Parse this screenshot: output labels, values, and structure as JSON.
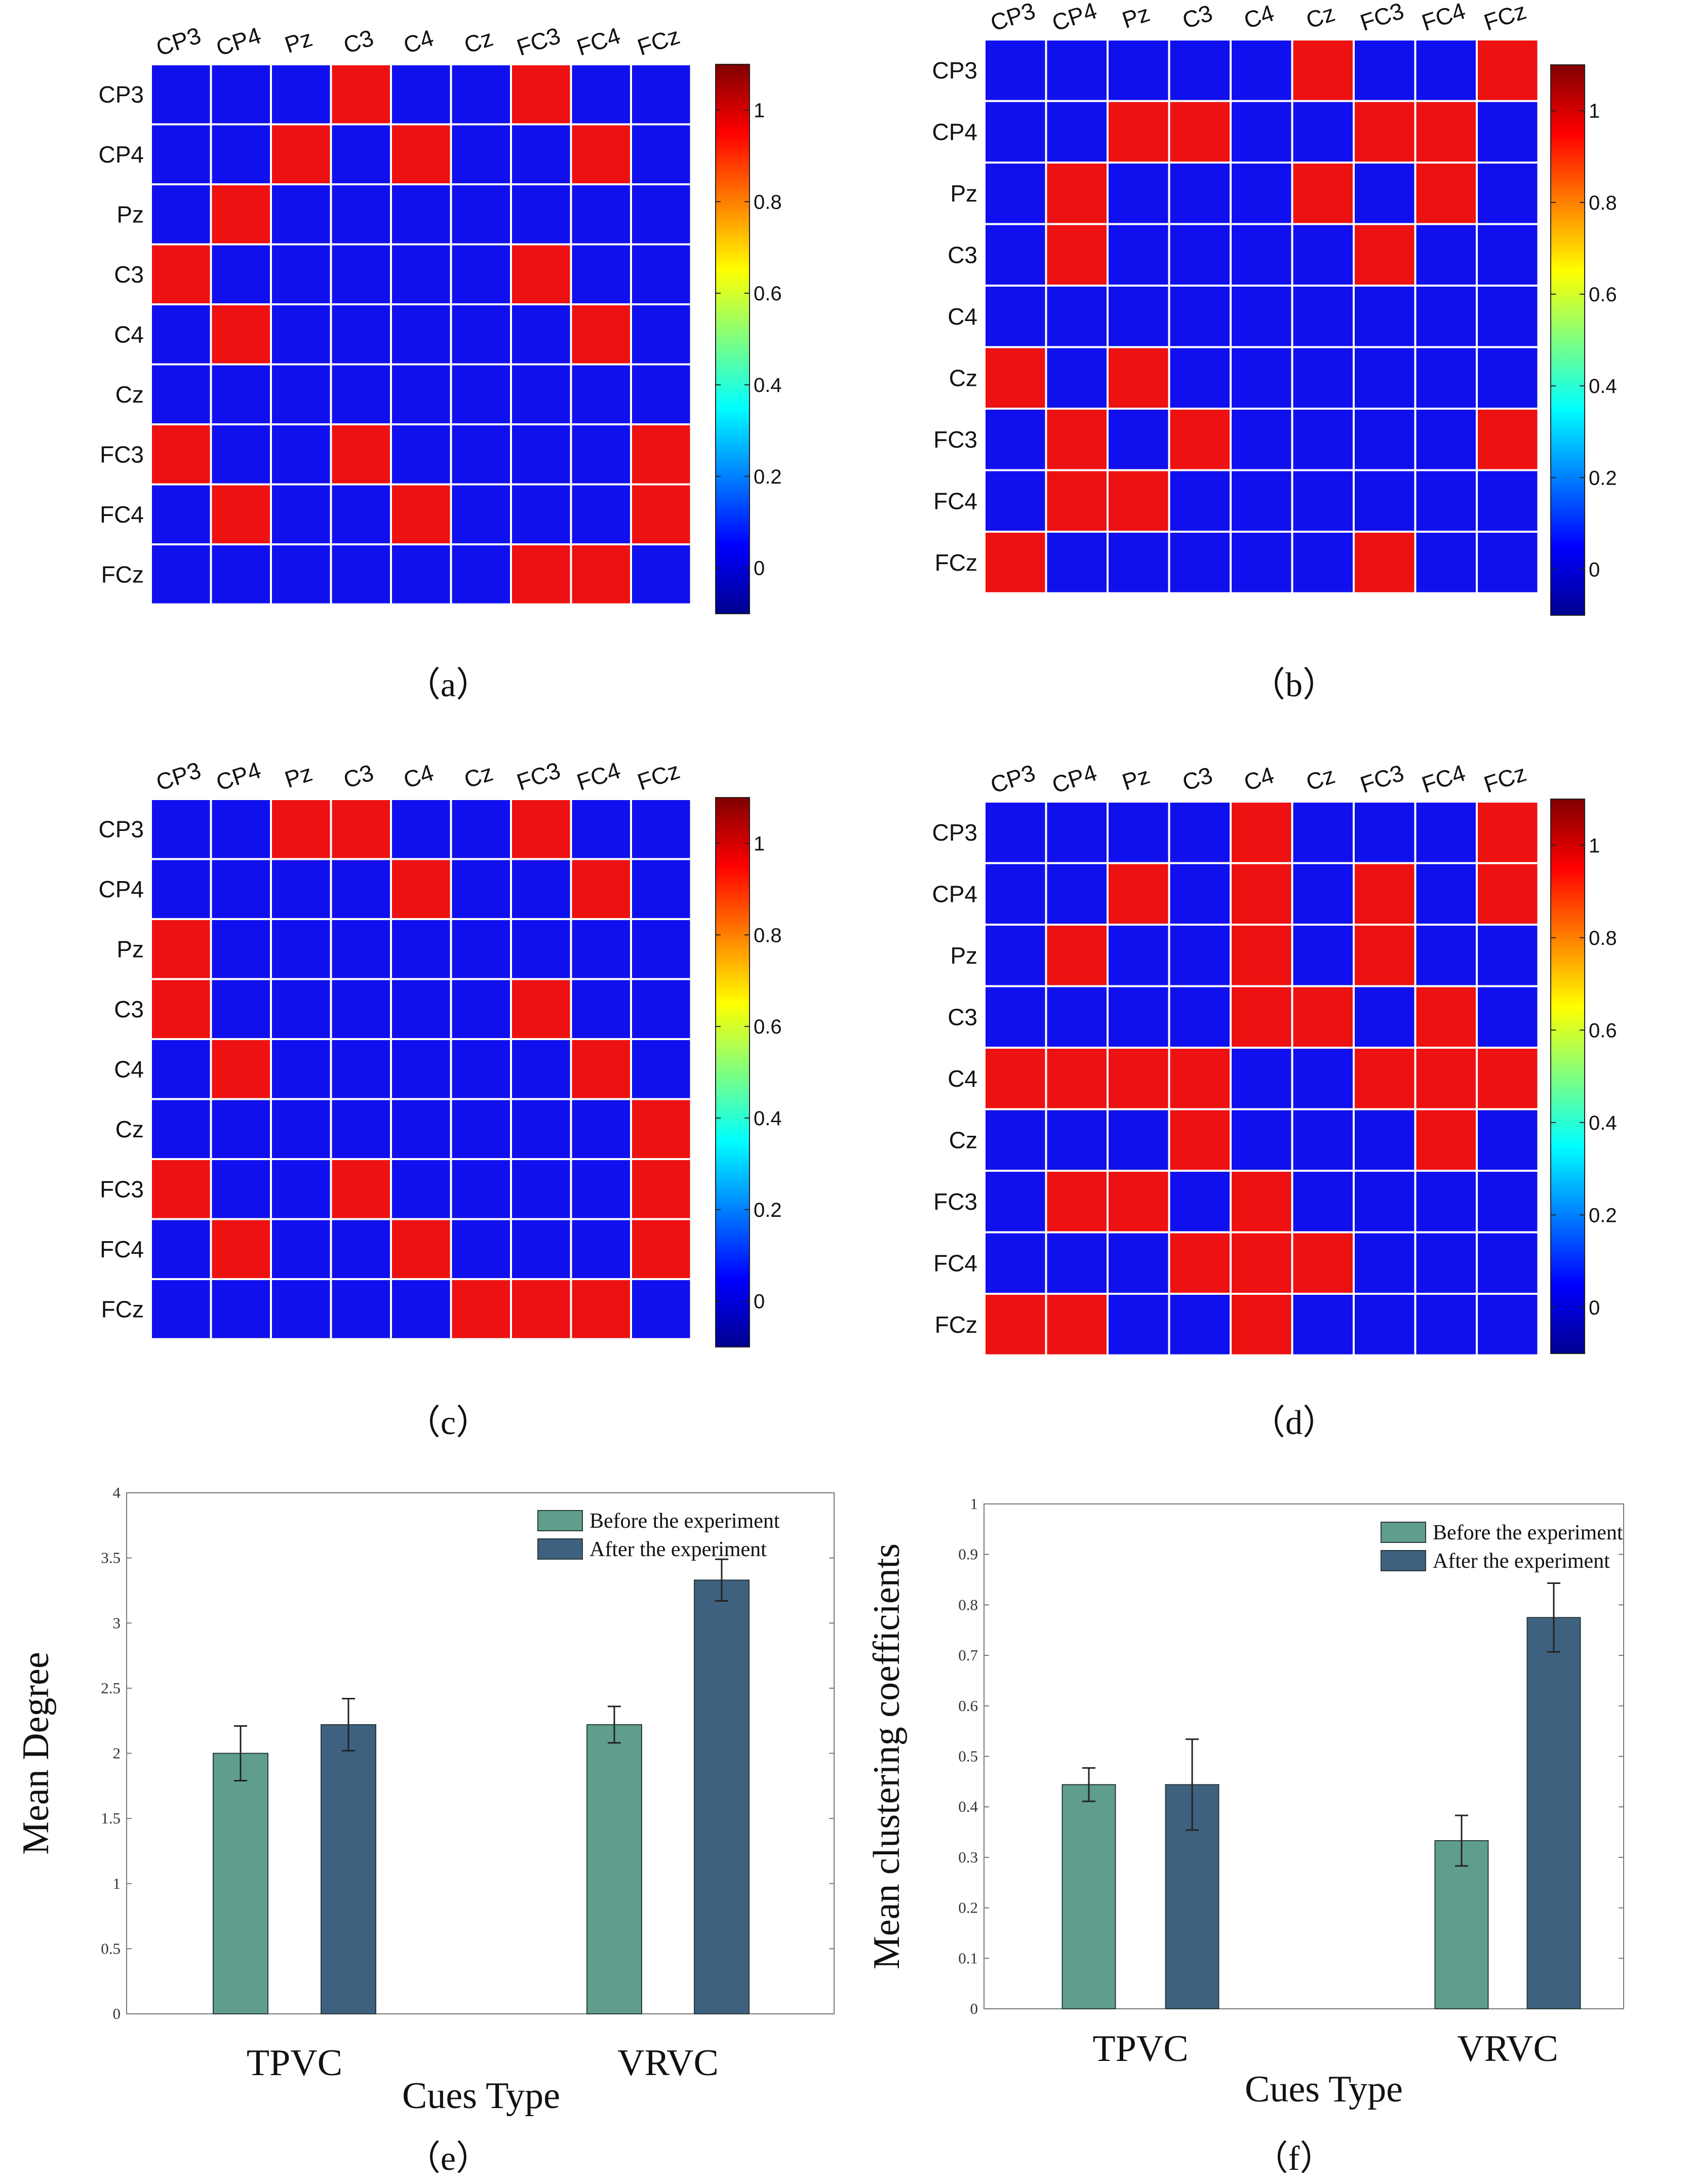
{
  "chart_data": [
    {
      "type": "heatmap",
      "caption": "（a）",
      "labels": [
        "CP3",
        "CP4",
        "Pz",
        "C3",
        "C4",
        "Cz",
        "FC3",
        "FC4",
        "FCz"
      ],
      "matrix": [
        [
          0,
          0,
          0,
          1,
          0,
          0,
          1,
          0,
          0
        ],
        [
          0,
          0,
          1,
          0,
          1,
          0,
          0,
          1,
          0
        ],
        [
          0,
          1,
          0,
          0,
          0,
          0,
          0,
          0,
          0
        ],
        [
          1,
          0,
          0,
          0,
          0,
          0,
          1,
          0,
          0
        ],
        [
          0,
          1,
          0,
          0,
          0,
          0,
          0,
          1,
          0
        ],
        [
          0,
          0,
          0,
          0,
          0,
          0,
          0,
          0,
          0
        ],
        [
          1,
          0,
          0,
          1,
          0,
          0,
          0,
          0,
          1
        ],
        [
          0,
          1,
          0,
          0,
          1,
          0,
          0,
          0,
          1
        ],
        [
          0,
          0,
          0,
          0,
          0,
          0,
          1,
          1,
          0
        ]
      ],
      "colorbar_range": [
        -0.1,
        1.1
      ],
      "colorbar_ticks": [
        "0",
        "0.2",
        "0.4",
        "0.6",
        "0.8",
        "1"
      ]
    },
    {
      "type": "heatmap",
      "caption": "（b）",
      "labels": [
        "CP3",
        "CP4",
        "Pz",
        "C3",
        "C4",
        "Cz",
        "FC3",
        "FC4",
        "FCz"
      ],
      "matrix": [
        [
          0,
          0,
          0,
          0,
          0,
          1,
          0,
          0,
          1
        ],
        [
          0,
          0,
          1,
          1,
          0,
          0,
          1,
          1,
          0
        ],
        [
          0,
          1,
          0,
          0,
          0,
          1,
          0,
          1,
          0
        ],
        [
          0,
          1,
          0,
          0,
          0,
          0,
          1,
          0,
          0
        ],
        [
          0,
          0,
          0,
          0,
          0,
          0,
          0,
          0,
          0
        ],
        [
          1,
          0,
          1,
          0,
          0,
          0,
          0,
          0,
          0
        ],
        [
          0,
          1,
          0,
          1,
          0,
          0,
          0,
          0,
          1
        ],
        [
          0,
          1,
          1,
          0,
          0,
          0,
          0,
          0,
          0
        ],
        [
          1,
          0,
          0,
          0,
          0,
          0,
          1,
          0,
          0
        ]
      ],
      "colorbar_range": [
        -0.1,
        1.1
      ],
      "colorbar_ticks": [
        "0",
        "0.2",
        "0.4",
        "0.6",
        "0.8",
        "1"
      ]
    },
    {
      "type": "heatmap",
      "caption": "（c）",
      "labels": [
        "CP3",
        "CP4",
        "Pz",
        "C3",
        "C4",
        "Cz",
        "FC3",
        "FC4",
        "FCz"
      ],
      "matrix": [
        [
          0,
          0,
          1,
          1,
          0,
          0,
          1,
          0,
          0
        ],
        [
          0,
          0,
          0,
          0,
          1,
          0,
          0,
          1,
          0
        ],
        [
          1,
          0,
          0,
          0,
          0,
          0,
          0,
          0,
          0
        ],
        [
          1,
          0,
          0,
          0,
          0,
          0,
          1,
          0,
          0
        ],
        [
          0,
          1,
          0,
          0,
          0,
          0,
          0,
          1,
          0
        ],
        [
          0,
          0,
          0,
          0,
          0,
          0,
          0,
          0,
          1
        ],
        [
          1,
          0,
          0,
          1,
          0,
          0,
          0,
          0,
          1
        ],
        [
          0,
          1,
          0,
          0,
          1,
          0,
          0,
          0,
          1
        ],
        [
          0,
          0,
          0,
          0,
          0,
          1,
          1,
          1,
          0
        ]
      ],
      "colorbar_range": [
        -0.1,
        1.1
      ],
      "colorbar_ticks": [
        "0",
        "0.2",
        "0.4",
        "0.6",
        "0.8",
        "1"
      ]
    },
    {
      "type": "heatmap",
      "caption": "（d）",
      "labels": [
        "CP3",
        "CP4",
        "Pz",
        "C3",
        "C4",
        "Cz",
        "FC3",
        "FC4",
        "FCz"
      ],
      "matrix": [
        [
          0,
          0,
          0,
          0,
          1,
          0,
          0,
          0,
          1
        ],
        [
          0,
          0,
          1,
          0,
          1,
          0,
          1,
          0,
          1
        ],
        [
          0,
          1,
          0,
          0,
          1,
          0,
          1,
          0,
          0
        ],
        [
          0,
          0,
          0,
          0,
          1,
          1,
          0,
          1,
          0
        ],
        [
          1,
          1,
          1,
          1,
          0,
          0,
          1,
          1,
          1
        ],
        [
          0,
          0,
          0,
          1,
          0,
          0,
          0,
          1,
          0
        ],
        [
          0,
          1,
          1,
          0,
          1,
          0,
          0,
          0,
          0
        ],
        [
          0,
          0,
          0,
          1,
          1,
          1,
          0,
          0,
          0
        ],
        [
          1,
          1,
          0,
          0,
          1,
          0,
          0,
          0,
          0
        ]
      ],
      "colorbar_range": [
        -0.1,
        1.1
      ],
      "colorbar_ticks": [
        "0",
        "0.2",
        "0.4",
        "0.6",
        "0.8",
        "1"
      ]
    },
    {
      "type": "bar",
      "caption": "（e）",
      "categories": [
        "TPVC",
        "VRVC"
      ],
      "series": [
        {
          "name": "Before the experiment",
          "values": [
            2.0,
            2.22
          ],
          "errors": [
            0.21,
            0.14
          ],
          "color": "#5f9e8c"
        },
        {
          "name": "After the experiment",
          "values": [
            2.22,
            3.33
          ],
          "errors": [
            0.2,
            0.16
          ],
          "color": "#3e6180"
        }
      ],
      "xlabel": "Cues Type",
      "ylabel": "Mean Degree",
      "ylim": [
        0,
        4
      ],
      "yticks": [
        "0",
        "0.5",
        "1",
        "1.5",
        "2",
        "2.5",
        "3",
        "3.5",
        "4"
      ],
      "legend_position": "top-right"
    },
    {
      "type": "bar",
      "caption": "（f）",
      "categories": [
        "TPVC",
        "VRVC"
      ],
      "series": [
        {
          "name": "Before the experiment",
          "values": [
            0.444,
            0.333
          ],
          "errors": [
            0.033,
            0.05
          ],
          "color": "#5f9e8c"
        },
        {
          "name": "After the experiment",
          "values": [
            0.444,
            0.775
          ],
          "errors": [
            0.09,
            0.068
          ],
          "color": "#3e6180"
        }
      ],
      "xlabel": "Cues Type",
      "ylabel": "Mean clustering coefficients",
      "ylim": [
        0,
        1
      ],
      "yticks": [
        "0",
        "0.1",
        "0.2",
        "0.3",
        "0.4",
        "0.5",
        "0.6",
        "0.7",
        "0.8",
        "0.9",
        "1"
      ],
      "legend_position": "top-right"
    }
  ],
  "colors": {
    "cell_on": "#ee1111",
    "cell_off": "#1010ee",
    "grid": "#ffffff"
  }
}
